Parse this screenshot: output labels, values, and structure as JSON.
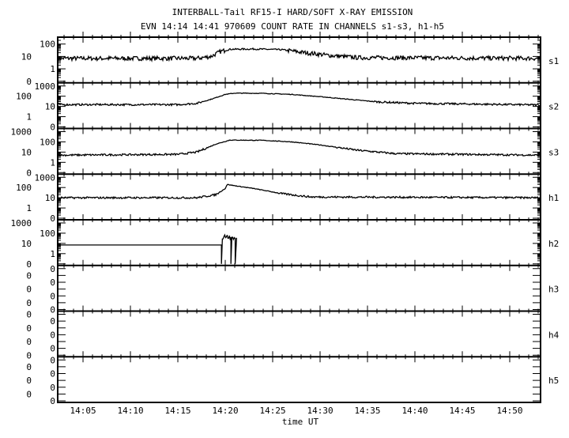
{
  "chart_data": {
    "type": "line",
    "title": "INTERBALL-Tail RF15-I HARD/SOFT X-RAY EMISSION",
    "subtitle": "EVN 14:14 14:41 970609  COUNT RATE IN CHANNELS s1-s3, h1-h5",
    "xlabel": "time UT",
    "x_unit": "minutes after 14:00 UT",
    "xlim": [
      2.33,
      53.25
    ],
    "x_ticks": [
      5,
      10,
      15,
      20,
      25,
      30,
      35,
      40,
      45,
      50
    ],
    "x_tick_labels": [
      "14:05",
      "14:10",
      "14:15",
      "14:20",
      "14:25",
      "14:30",
      "14:35",
      "14:40",
      "14:45",
      "14:50"
    ],
    "yscale": "log",
    "panels": [
      {
        "name": "s1",
        "ylim": [
          0.1,
          200
        ],
        "tick_labels": [
          "100",
          "10",
          "1",
          "0"
        ],
        "tick_values": [
          100,
          10,
          1,
          0.1
        ],
        "points": [
          [
            2.3,
            7
          ],
          [
            17,
            7
          ],
          [
            18.5,
            10
          ],
          [
            19.5,
            25
          ],
          [
            20.5,
            38
          ],
          [
            23,
            40
          ],
          [
            26,
            35
          ],
          [
            28,
            22
          ],
          [
            31,
            12
          ],
          [
            34,
            8
          ],
          [
            53.3,
            7
          ]
        ]
      },
      {
        "name": "s2",
        "ylim": [
          0.1,
          1000
        ],
        "tick_labels": [
          "1000",
          "100",
          "10",
          "1",
          "0"
        ],
        "tick_values": [
          1000,
          100,
          10,
          1,
          0.1
        ],
        "points": [
          [
            2.3,
            15
          ],
          [
            15,
            15
          ],
          [
            17,
            20
          ],
          [
            18.5,
            50
          ],
          [
            20,
            150
          ],
          [
            21,
            200
          ],
          [
            24,
            190
          ],
          [
            27,
            150
          ],
          [
            30,
            90
          ],
          [
            33,
            50
          ],
          [
            36,
            28
          ],
          [
            40,
            20
          ],
          [
            53.3,
            14
          ]
        ]
      },
      {
        "name": "s3",
        "ylim": [
          0.1,
          1000
        ],
        "tick_labels": [
          "1000",
          "100",
          "10",
          "1",
          "0"
        ],
        "tick_values": [
          1000,
          100,
          10,
          1,
          0.1
        ],
        "points": [
          [
            2.3,
            5
          ],
          [
            15,
            6
          ],
          [
            17,
            10
          ],
          [
            19,
            60
          ],
          [
            20.5,
            150
          ],
          [
            24,
            140
          ],
          [
            27,
            100
          ],
          [
            30,
            50
          ],
          [
            34,
            15
          ],
          [
            38,
            7
          ],
          [
            53.3,
            5
          ]
        ]
      },
      {
        "name": "h1",
        "ylim": [
          0.1,
          1000
        ],
        "tick_labels": [
          "1000",
          "100",
          "10",
          "1",
          "0"
        ],
        "tick_values": [
          1000,
          100,
          10,
          1,
          0.1
        ],
        "points": [
          [
            2.3,
            10
          ],
          [
            17,
            10
          ],
          [
            19,
            20
          ],
          [
            20,
            80
          ],
          [
            20.2,
            200
          ],
          [
            21,
            150
          ],
          [
            23,
            80
          ],
          [
            26,
            25
          ],
          [
            29,
            12
          ],
          [
            53.3,
            10
          ]
        ]
      },
      {
        "name": "h2",
        "ylim": [
          0.1,
          1000
        ],
        "tick_labels": [
          "1000",
          "100",
          "10",
          "1",
          "0"
        ],
        "tick_values": [
          1000,
          100,
          10,
          1,
          0.1
        ],
        "points": [
          [
            2.3,
            7
          ],
          [
            19.6,
            7
          ],
          [
            19.6,
            0.1
          ],
          [
            19.7,
            30
          ],
          [
            20.2,
            60
          ],
          [
            20.6,
            40
          ],
          [
            20.6,
            0.1
          ],
          [
            20.7,
            45
          ],
          [
            21.05,
            35
          ],
          [
            21.05,
            0.1
          ],
          [
            21.2,
            35
          ]
        ]
      },
      {
        "name": "h3",
        "ylim": [
          0.1,
          1000
        ],
        "tick_labels": [
          "0",
          "0",
          "0",
          "0",
          "0",
          "0",
          "0"
        ],
        "tick_values": [],
        "points": []
      },
      {
        "name": "h4",
        "ylim": [
          0.1,
          1000
        ],
        "tick_labels": [
          "0",
          "0",
          "0",
          "0",
          "0",
          "0",
          "0"
        ],
        "tick_values": [],
        "points": []
      },
      {
        "name": "h5",
        "ylim": [
          0.1,
          1000
        ],
        "tick_labels": [
          "0",
          "0",
          "0",
          "0",
          "0",
          "0",
          "0"
        ],
        "tick_values": [],
        "points": []
      }
    ]
  }
}
